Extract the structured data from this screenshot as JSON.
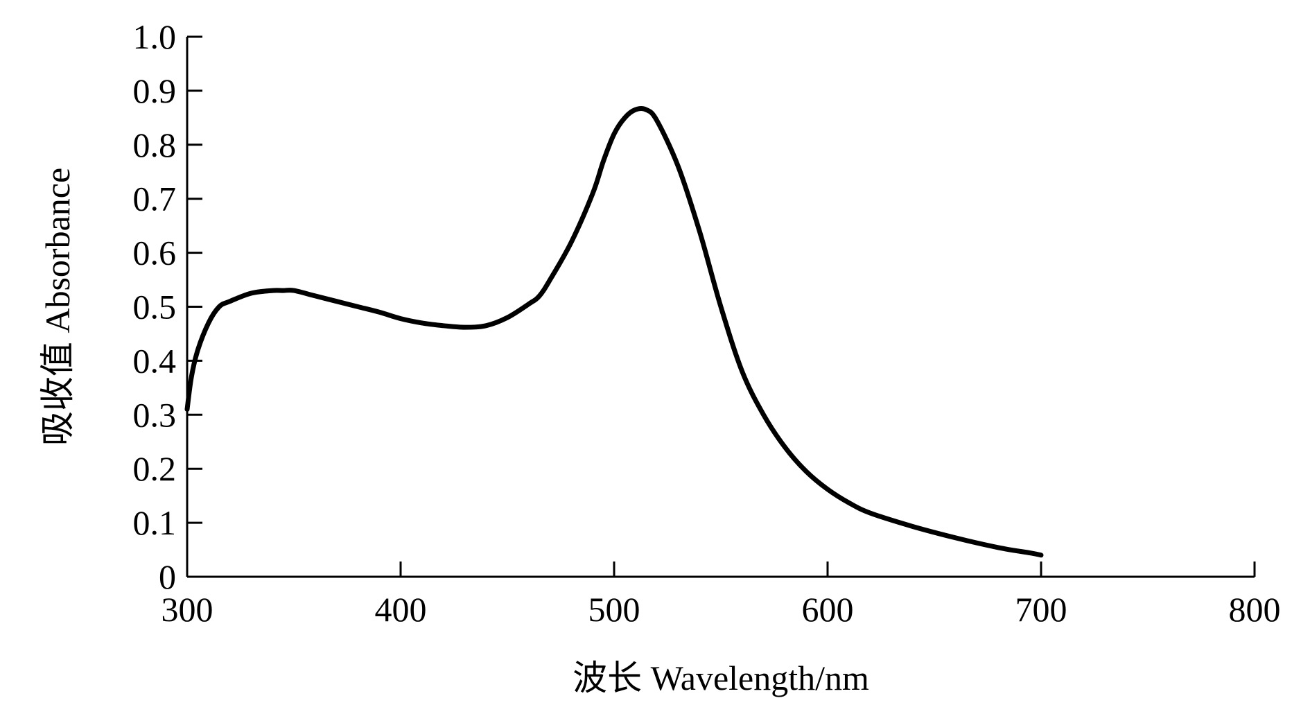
{
  "chart_data": {
    "type": "line",
    "title": "",
    "xlabel": "波长 Wavelength/nm",
    "ylabel": "吸收值 Absorbance",
    "xlim": [
      300,
      800
    ],
    "ylim": [
      0,
      1.0
    ],
    "x_ticks": [
      300,
      400,
      500,
      600,
      700,
      800
    ],
    "x_tick_labels": [
      "300",
      "400",
      "500",
      "600",
      "700",
      "800"
    ],
    "y_ticks": [
      0,
      0.1,
      0.2,
      0.3,
      0.4,
      0.5,
      0.6,
      0.7,
      0.8,
      0.9,
      1.0
    ],
    "y_tick_labels": [
      "0",
      "0.1",
      "0.2",
      "0.3",
      "0.4",
      "0.5",
      "0.6",
      "0.7",
      "0.8",
      "0.9",
      "1.0"
    ],
    "grid": false,
    "legend": "none",
    "line_color": "#000000",
    "series": [
      {
        "x": [
          300,
          302,
          305,
          310,
          315,
          320,
          330,
          340,
          345,
          350,
          360,
          370,
          380,
          390,
          400,
          410,
          420,
          430,
          440,
          450,
          460,
          465,
          470,
          480,
          490,
          495,
          500,
          505,
          510,
          515,
          520,
          530,
          540,
          550,
          560,
          570,
          580,
          590,
          600,
          610,
          620,
          640,
          660,
          680,
          695,
          700
        ],
        "y": [
          0.31,
          0.37,
          0.42,
          0.47,
          0.5,
          0.51,
          0.525,
          0.53,
          0.53,
          0.53,
          0.52,
          0.51,
          0.5,
          0.49,
          0.478,
          0.47,
          0.465,
          0.462,
          0.465,
          0.48,
          0.505,
          0.52,
          0.55,
          0.62,
          0.71,
          0.77,
          0.82,
          0.85,
          0.865,
          0.865,
          0.845,
          0.76,
          0.64,
          0.5,
          0.38,
          0.3,
          0.24,
          0.195,
          0.162,
          0.137,
          0.118,
          0.093,
          0.072,
          0.054,
          0.044,
          0.04
        ]
      }
    ]
  }
}
